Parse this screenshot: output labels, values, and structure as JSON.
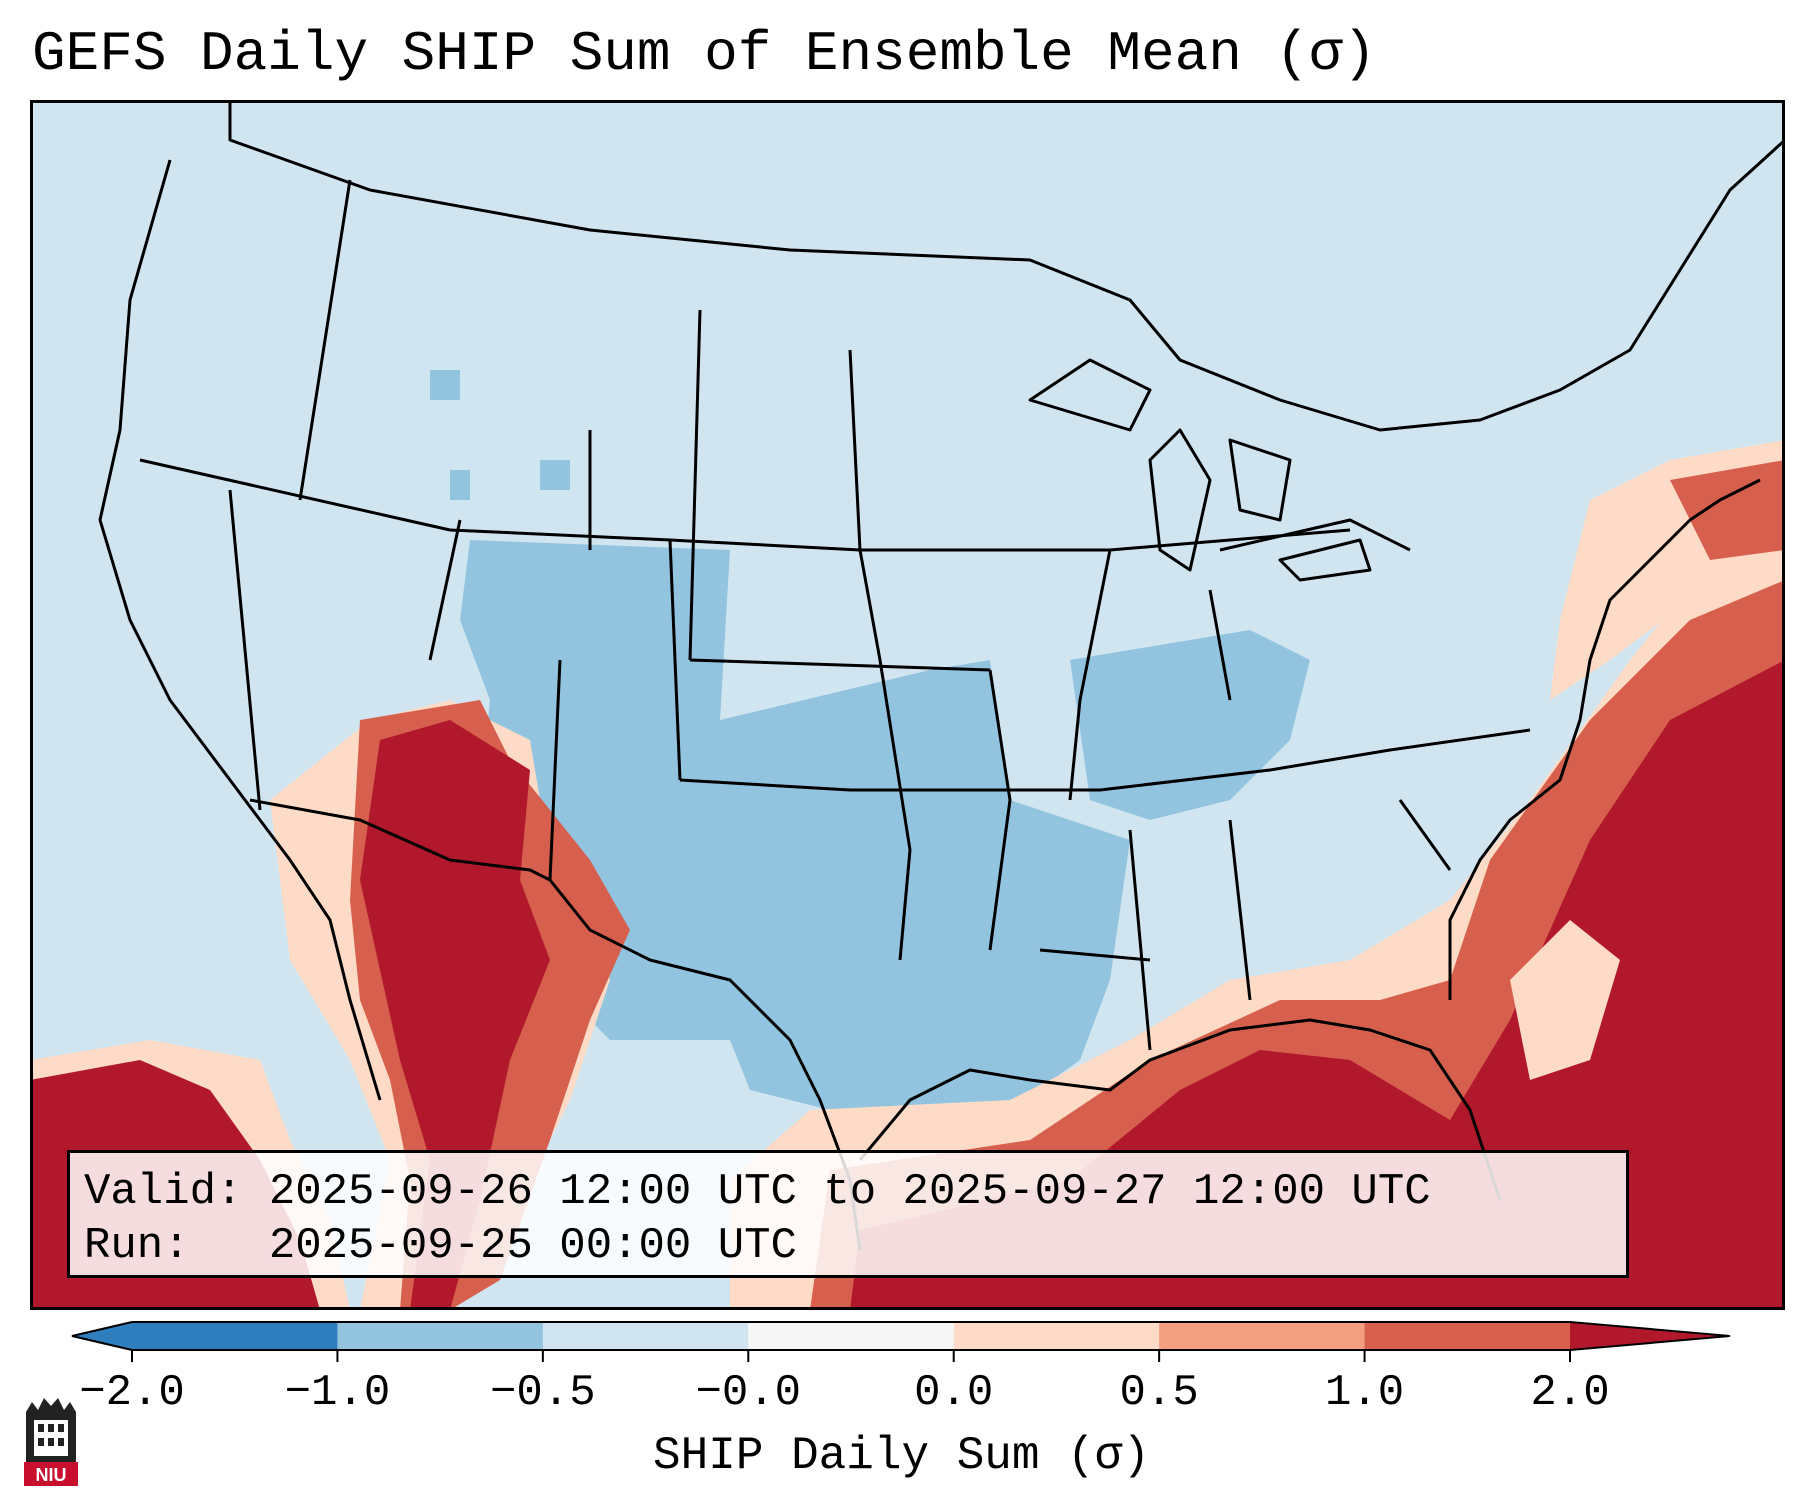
{
  "title": "GEFS Daily SHIP Sum of Ensemble Mean (σ)",
  "info": {
    "valid_label": "Valid:",
    "valid_value": "2025-09-26 12:00 UTC to 2025-09-27 12:00 UTC",
    "run_label": "Run:",
    "run_value": "2025-09-25 00:00 UTC"
  },
  "colorbar": {
    "label": "SHIP Daily Sum (σ)",
    "ticks": [
      "−2.0",
      "−1.0",
      "−0.5",
      "−0.0",
      "0.0",
      "0.5",
      "1.0",
      "2.0"
    ],
    "colors": [
      "#2f7fbf",
      "#92c4df",
      "#d1e5f0",
      "#f7f7f7",
      "#fddbc7",
      "#f2a07f",
      "#d6604d",
      "#b2182b"
    ]
  },
  "map": {
    "region": "Continental United States",
    "background_color": "#d1e5f0",
    "border_color": "#000000"
  },
  "logo": {
    "text": "NIU"
  }
}
